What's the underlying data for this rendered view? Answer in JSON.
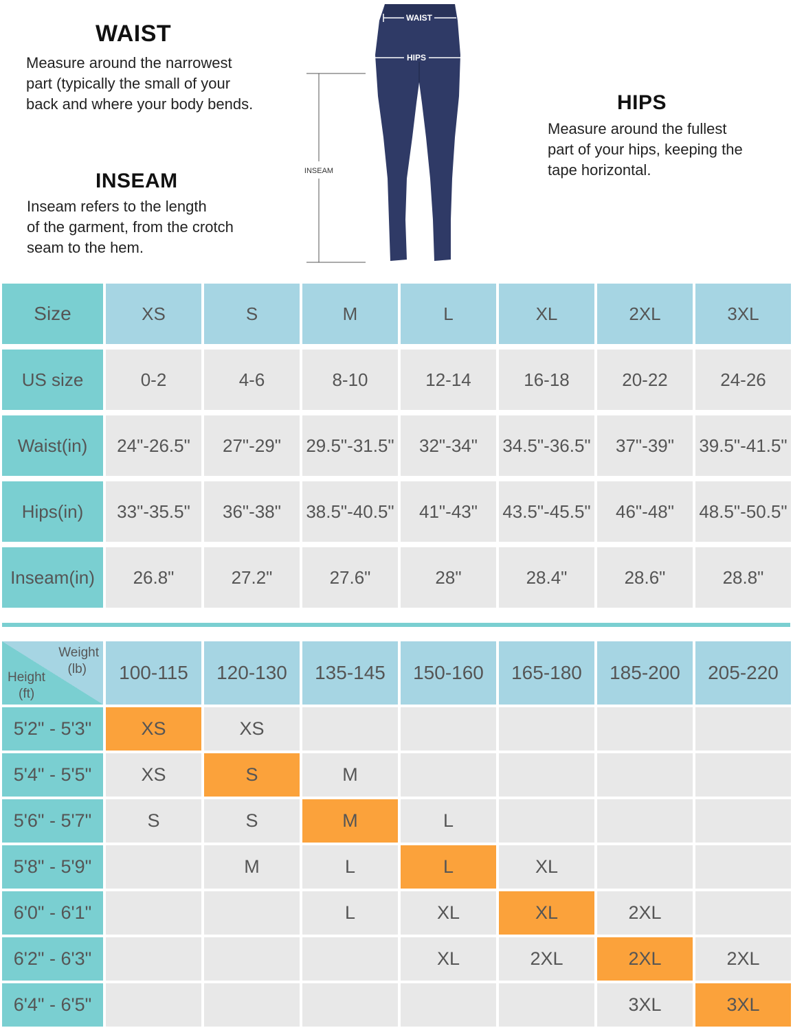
{
  "waist": {
    "title": "WAIST",
    "lines": [
      "Measure around the narrowest",
      "part (typically the small of your",
      "back and where your body bends."
    ]
  },
  "inseam": {
    "title": "INSEAM",
    "lines": [
      "Inseam refers to the length",
      "of the garment, from the crotch",
      "seam to the hem."
    ]
  },
  "hips": {
    "title": "HIPS",
    "lines": [
      "Measure around the fullest",
      "part of your hips, keeping the",
      "tape horizontal."
    ]
  },
  "figure": {
    "waist_label": "WAIST",
    "hips_label": "HIPS",
    "inseam_label": "INSEAM",
    "garment_color": "#2f3a66",
    "icon": "leggings-icon"
  },
  "colors": {
    "header": "#a6d5e3",
    "label": "#7acfd1",
    "cell": "#e8e8e8",
    "highlight": "#fba23b"
  },
  "size_table": {
    "header_label": "Size",
    "sizes": [
      "XS",
      "S",
      "M",
      "L",
      "XL",
      "2XL",
      "3XL"
    ],
    "rows": [
      {
        "label": "US size",
        "values": [
          "0-2",
          "4-6",
          "8-10",
          "12-14",
          "16-18",
          "20-22",
          "24-26"
        ]
      },
      {
        "label": "Waist(in)",
        "values": [
          "24\"-26.5\"",
          "27\"-29\"",
          "29.5\"-31.5\"",
          "32\"-34\"",
          "34.5\"-36.5\"",
          "37\"-39\"",
          "39.5\"-41.5\""
        ]
      },
      {
        "label": "Hips(in)",
        "values": [
          "33\"-35.5\"",
          "36\"-38\"",
          "38.5\"-40.5\"",
          "41\"-43\"",
          "43.5\"-45.5\"",
          "46\"-48\"",
          "48.5\"-50.5\""
        ]
      },
      {
        "label": "Inseam(in)",
        "values": [
          "26.8\"",
          "27.2\"",
          "27.6\"",
          "28\"",
          "28.4\"",
          "28.6\"",
          "28.8\""
        ]
      }
    ]
  },
  "fit_table": {
    "corner": {
      "weight": "Weight",
      "weight_unit": "(lb)",
      "height": "Height",
      "height_unit": "(ft)"
    },
    "weights": [
      "100-115",
      "120-130",
      "135-145",
      "150-160",
      "165-180",
      "185-200",
      "205-220"
    ],
    "rows": [
      {
        "height": "5'2\" - 5'3\"",
        "values": [
          "XS",
          "XS",
          "",
          "",
          "",
          "",
          ""
        ],
        "highlight": 0
      },
      {
        "height": "5'4\" - 5'5\"",
        "values": [
          "XS",
          "S",
          "M",
          "",
          "",
          "",
          ""
        ],
        "highlight": 1
      },
      {
        "height": "5'6\" - 5'7\"",
        "values": [
          "S",
          "S",
          "M",
          "L",
          "",
          "",
          ""
        ],
        "highlight": 2
      },
      {
        "height": "5'8\" - 5'9\"",
        "values": [
          "",
          "M",
          "L",
          "L",
          "XL",
          "",
          ""
        ],
        "highlight": 3
      },
      {
        "height": "6'0\" - 6'1\"",
        "values": [
          "",
          "",
          "L",
          "XL",
          "XL",
          "2XL",
          ""
        ],
        "highlight": 4
      },
      {
        "height": "6'2\" - 6'3\"",
        "values": [
          "",
          "",
          "",
          "XL",
          "2XL",
          "2XL",
          "2XL"
        ],
        "highlight": 5
      },
      {
        "height": "6'4\" - 6'5\"",
        "values": [
          "",
          "",
          "",
          "",
          "",
          "3XL",
          "3XL"
        ],
        "highlight": 6
      }
    ]
  }
}
